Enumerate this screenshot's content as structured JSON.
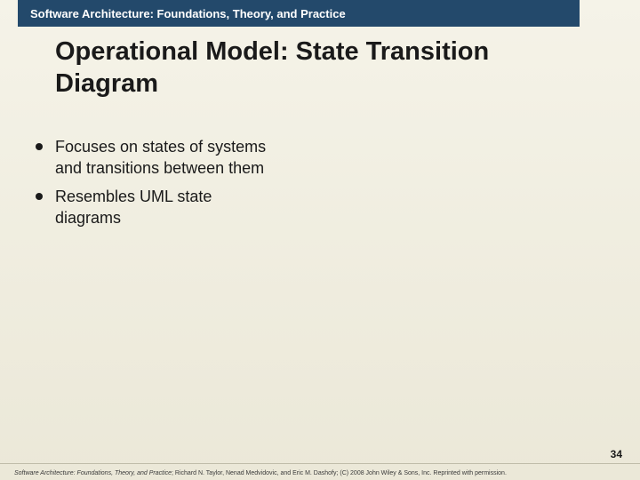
{
  "colors": {
    "header_bg": "#23496b",
    "header_text": "#ffffff",
    "body_bg_top": "#f5f3e8",
    "body_bg_bottom": "#ebe8d8",
    "title_text": "#1a1a1a",
    "bullet_dot": "#1a1a1a",
    "body_text": "#1a1a1a",
    "footer_line": "#c0bdaa",
    "footer_text": "#3a3a3a"
  },
  "typography": {
    "header_fontsize": 13,
    "title_fontsize": 29,
    "bullet_fontsize": 18,
    "pagenum_fontsize": 12,
    "footer_fontsize": 7,
    "font_family": "Verdana"
  },
  "header": {
    "title": "Software Architecture: Foundations, Theory, and Practice"
  },
  "slide": {
    "title": "Operational Model: State Transition Diagram"
  },
  "bullets": {
    "items": [
      "Focuses on states of systems and transitions between them",
      "Resembles UML state diagrams"
    ]
  },
  "page": {
    "number": "34"
  },
  "footer": {
    "book_title": "Software Architecture: Foundations, Theory, and Practice",
    "rest": "; Richard N. Taylor, Nenad Medvidovic, and Eric M. Dashofy; (C) 2008 John Wiley & Sons, Inc. Reprinted with permission."
  }
}
